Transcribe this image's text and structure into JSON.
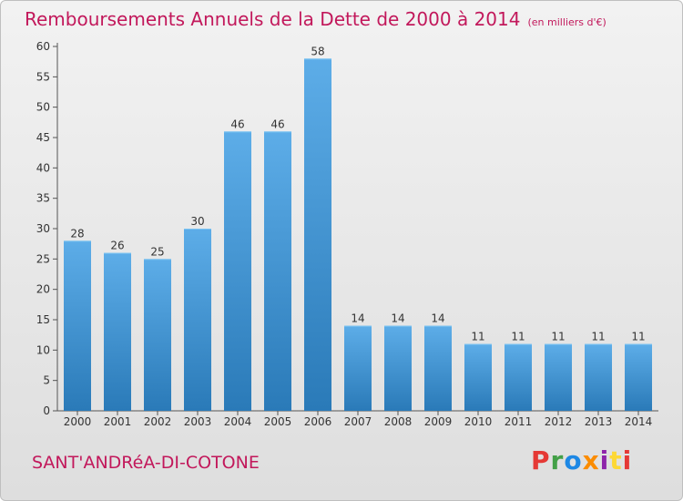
{
  "header": {
    "title": "Remboursements Annuels de la Dette de 2000 à 2014",
    "subtitle": "(en milliers d'€)"
  },
  "footer": {
    "commune": "SANT'ANDRéA-DI-COTONE",
    "logo_text": "Proxiti",
    "logo_colors": [
      "#e53935",
      "#43a047",
      "#1e88e5",
      "#fb8c00",
      "#8e24aa",
      "#fdd835",
      "#e53935"
    ]
  },
  "colors": {
    "bar_top": "#5dade8",
    "bar_bottom": "#2a7ab8",
    "accent": "#c2185b"
  },
  "chart_data": {
    "type": "bar",
    "categories": [
      "2000",
      "2001",
      "2002",
      "2003",
      "2004",
      "2005",
      "2006",
      "2007",
      "2008",
      "2009",
      "2010",
      "2011",
      "2012",
      "2013",
      "2014"
    ],
    "values": [
      28,
      26,
      25,
      30,
      46,
      46,
      58,
      14,
      14,
      14,
      11,
      11,
      11,
      11,
      11
    ],
    "data_labels": [
      "28",
      "26",
      "25",
      "30",
      "46",
      "46",
      "58",
      "14",
      "14",
      "14",
      "11",
      "11",
      "11",
      "11",
      "11"
    ],
    "yticks": [
      "0",
      "5",
      "10",
      "15",
      "20",
      "25",
      "30",
      "35",
      "40",
      "45",
      "50",
      "55",
      "60"
    ],
    "ylim": [
      0,
      60
    ],
    "grid": false,
    "legend": "none",
    "xlabel": "",
    "ylabel": ""
  }
}
